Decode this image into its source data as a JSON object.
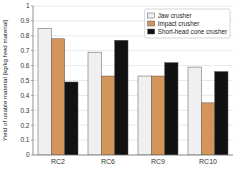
{
  "chart_data": {
    "type": "bar",
    "categories": [
      "RC2",
      "RC6",
      "RC9",
      "RC10"
    ],
    "series": [
      {
        "name": "Jaw crusher",
        "color": "#f0f0f0",
        "values": [
          0.85,
          0.69,
          0.53,
          0.59
        ]
      },
      {
        "name": "Impact crusher",
        "color": "#d4955a",
        "values": [
          0.78,
          0.53,
          0.53,
          0.35
        ]
      },
      {
        "name": "Short-head cone crusher",
        "color": "#111111",
        "values": [
          0.49,
          0.77,
          0.62,
          0.56
        ]
      }
    ],
    "ylabel": "Yield of usable material [kg/kg feed material]",
    "ylim": [
      0,
      1.0
    ],
    "yticks": [
      0,
      0.1,
      0.2,
      0.3,
      0.4,
      0.5,
      0.6,
      0.7,
      0.8,
      0.9,
      1
    ],
    "grid": true,
    "legend": "upper right"
  }
}
